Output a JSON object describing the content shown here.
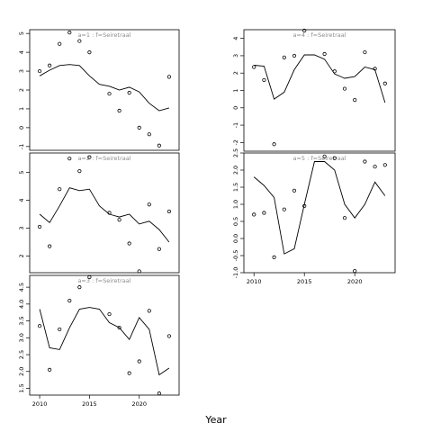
{
  "figure": {
    "xlabel": "Year"
  },
  "chart_data": [
    {
      "type": "line",
      "title": "a=1 : f=Seiretraal",
      "x": [
        2010,
        2011,
        2012,
        2013,
        2014,
        2015,
        2016,
        2017,
        2018,
        2019,
        2020,
        2021,
        2022,
        2023
      ],
      "series": [
        {
          "role": "observed",
          "style": "points",
          "values": [
            3.0,
            3.3,
            4.45,
            5.05,
            4.6,
            4.0,
            null,
            1.8,
            0.9,
            1.85,
            0.0,
            -0.35,
            -0.95,
            2.7
          ]
        },
        {
          "role": "fitted",
          "style": "line",
          "values": [
            2.75,
            3.05,
            3.3,
            3.35,
            3.3,
            2.75,
            2.3,
            2.2,
            2.0,
            2.15,
            1.9,
            1.3,
            0.9,
            1.05
          ]
        }
      ],
      "xlim": [
        2009.0,
        2024.0
      ],
      "ylim": [
        -1.2,
        5.2
      ],
      "yticks": [
        -1,
        0,
        1,
        2,
        3,
        4,
        5
      ],
      "xticks": []
    },
    {
      "type": "line",
      "title": "a=4 : f=Seiretraal",
      "x": [
        2010,
        2011,
        2012,
        2013,
        2014,
        2015,
        2016,
        2017,
        2018,
        2019,
        2020,
        2021,
        2022,
        2023
      ],
      "series": [
        {
          "role": "observed",
          "style": "points",
          "values": [
            2.35,
            1.6,
            -2.1,
            2.9,
            3.0,
            4.45,
            null,
            3.1,
            2.1,
            1.1,
            0.45,
            3.2,
            2.25,
            1.4
          ]
        },
        {
          "role": "fitted",
          "style": "line",
          "values": [
            2.45,
            2.4,
            0.5,
            0.9,
            2.2,
            3.05,
            3.05,
            2.8,
            1.95,
            1.7,
            1.8,
            2.35,
            2.2,
            0.3
          ]
        }
      ],
      "xlim": [
        2009.0,
        2024.0
      ],
      "ylim": [
        -2.5,
        4.5
      ],
      "yticks": [
        -2,
        -1,
        0,
        1,
        2,
        3,
        4
      ],
      "xticks": []
    },
    {
      "type": "line",
      "title": "a=2 : f=Seiretraal",
      "x": [
        2010,
        2011,
        2012,
        2013,
        2014,
        2015,
        2016,
        2017,
        2018,
        2019,
        2020,
        2021,
        2022,
        2023
      ],
      "series": [
        {
          "role": "observed",
          "style": "points",
          "values": [
            3.05,
            2.35,
            4.4,
            5.5,
            5.05,
            5.55,
            null,
            3.55,
            3.3,
            2.45,
            1.45,
            3.85,
            2.25,
            3.6
          ]
        },
        {
          "role": "fitted",
          "style": "line",
          "values": [
            3.5,
            3.2,
            3.8,
            4.45,
            4.35,
            4.4,
            3.8,
            3.5,
            3.4,
            3.5,
            3.15,
            3.25,
            2.95,
            2.5
          ]
        }
      ],
      "xlim": [
        2009.0,
        2024.0
      ],
      "ylim": [
        1.4,
        5.7
      ],
      "yticks": [
        2,
        3,
        4,
        5
      ],
      "xticks": []
    },
    {
      "type": "line",
      "title": "a=5 : f=Seiretraal",
      "x": [
        2010,
        2011,
        2012,
        2013,
        2014,
        2015,
        2016,
        2017,
        2018,
        2019,
        2020,
        2021,
        2022,
        2023
      ],
      "series": [
        {
          "role": "observed",
          "style": "points",
          "values": [
            0.7,
            0.75,
            -0.55,
            0.85,
            1.4,
            0.95,
            null,
            2.4,
            2.35,
            0.6,
            -0.95,
            2.25,
            2.1,
            2.15
          ]
        },
        {
          "role": "fitted",
          "style": "line",
          "values": [
            1.8,
            1.55,
            1.2,
            -0.45,
            -0.3,
            1.0,
            2.25,
            2.25,
            2.0,
            1.0,
            0.6,
            1.0,
            1.65,
            1.25
          ]
        }
      ],
      "xlim": [
        2009.0,
        2024.0
      ],
      "ylim": [
        -1.0,
        2.5
      ],
      "yticks": [
        -1.0,
        -0.5,
        0.0,
        0.5,
        1.0,
        1.5,
        2.0,
        2.5
      ],
      "xticks": [
        2010,
        2015,
        2020
      ]
    },
    {
      "type": "line",
      "title": "a=3 : f=Seiretraal",
      "x": [
        2010,
        2011,
        2012,
        2013,
        2014,
        2015,
        2016,
        2017,
        2018,
        2019,
        2020,
        2021,
        2022,
        2023
      ],
      "series": [
        {
          "role": "observed",
          "style": "points",
          "values": [
            3.35,
            2.05,
            3.25,
            4.1,
            4.5,
            4.8,
            null,
            3.7,
            3.3,
            1.95,
            2.3,
            3.8,
            1.35,
            3.05
          ]
        },
        {
          "role": "fitted",
          "style": "line",
          "values": [
            3.85,
            2.7,
            2.65,
            3.3,
            3.85,
            3.9,
            3.85,
            3.45,
            3.3,
            2.95,
            3.6,
            3.25,
            1.9,
            2.1
          ]
        }
      ],
      "xlim": [
        2009.0,
        2024.0
      ],
      "ylim": [
        1.3,
        4.85
      ],
      "yticks": [
        1.5,
        2.0,
        2.5,
        3.0,
        3.5,
        4.0,
        4.5
      ],
      "xticks": [
        2010,
        2015,
        2020
      ]
    }
  ]
}
